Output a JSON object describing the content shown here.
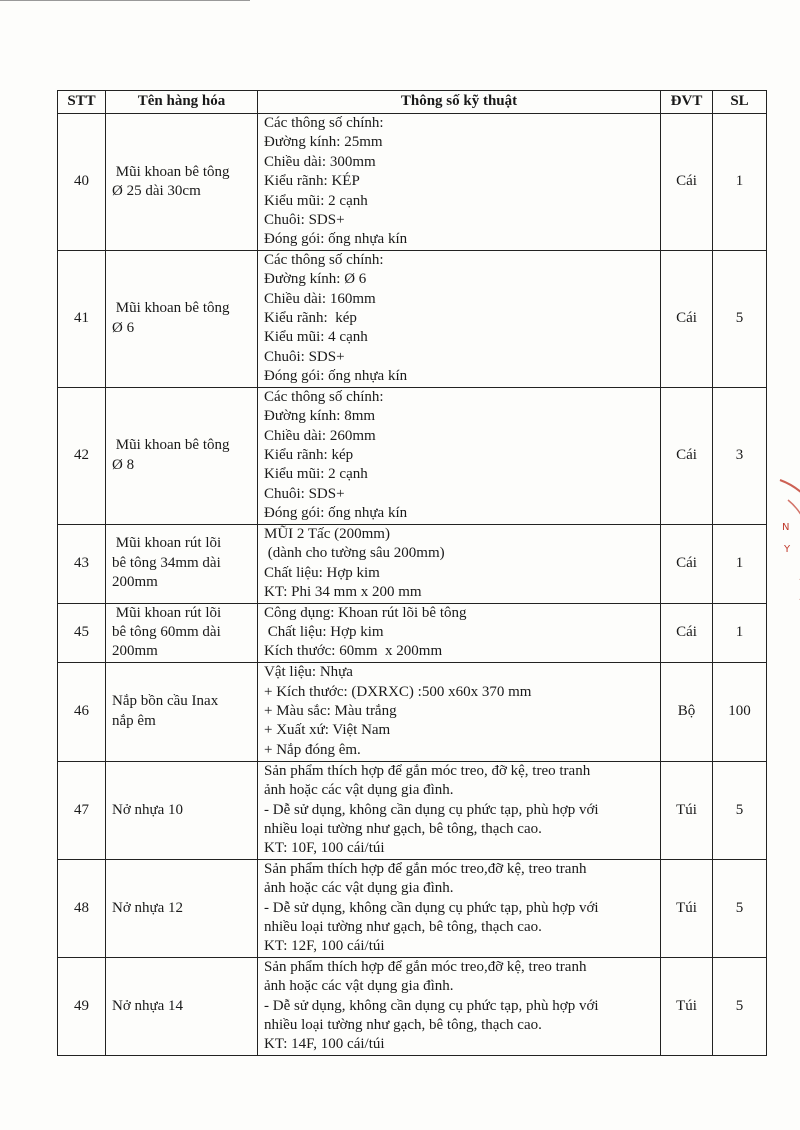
{
  "table": {
    "headers": [
      "STT",
      "Tên hàng hóa",
      "Thông số kỹ thuật",
      "ĐVT",
      "SL"
    ],
    "rows": [
      {
        "stt": "40",
        "name": " Mũi khoan bê tông\nØ 25 dài 30cm",
        "spec": [
          "Các thông số chính:",
          "Đường kính: 25mm",
          "Chiều dài: 300mm",
          "Kiểu rãnh: KÉP",
          "Kiểu mũi: 2 cạnh",
          "Chuôi: SDS+",
          "Đóng gói: ống nhựa kín"
        ],
        "unit": "Cái",
        "qty": "1"
      },
      {
        "stt": "41",
        "name": " Mũi khoan bê tông\nØ 6",
        "spec": [
          "Các thông số chính:",
          "Đường kính: Ø 6",
          "Chiều dài: 160mm",
          "Kiểu rãnh:  kép",
          "Kiểu mũi: 4 cạnh",
          "Chuôi: SDS+",
          "Đóng gói: ống nhựa kín"
        ],
        "unit": "Cái",
        "qty": "5"
      },
      {
        "stt": "42",
        "name": " Mũi khoan bê tông\nØ 8",
        "spec": [
          "Các thông số chính:",
          "Đường kính: 8mm",
          "Chiều dài: 260mm",
          "Kiểu rãnh: kép",
          "Kiểu mũi: 2 cạnh",
          "Chuôi: SDS+",
          "Đóng gói: ống nhựa kín"
        ],
        "unit": "Cái",
        "qty": "3"
      },
      {
        "stt": "43",
        "name": " Mũi khoan rút lõi\nbê tông 34mm dài\n200mm",
        "spec": [
          "MŨI 2 Tấc (200mm)",
          " (dành cho tường sâu 200mm)",
          "Chất liệu: Hợp kim",
          "KT: Phi 34 mm x 200 mm"
        ],
        "unit": "Cái",
        "qty": "1"
      },
      {
        "stt": "45",
        "name": " Mũi khoan rút lõi\nbê tông 60mm dài\n200mm",
        "spec": [
          "Công dụng: Khoan rút lõi bê tông",
          " Chất liệu: Hợp kim",
          "Kích thước: 60mm  x 200mm"
        ],
        "unit": "Cái",
        "qty": "1"
      },
      {
        "stt": "46",
        "name": "Nắp bồn cầu Inax\nnắp êm",
        "spec": [
          "Vật liệu: Nhựa",
          "+ Kích thước: (DXRXC) :500 x60x 370 mm",
          "+ Màu sắc: Màu trắng",
          "+ Xuất xứ: Việt Nam",
          "+ Nắp đóng êm."
        ],
        "unit": "Bộ",
        "qty": "100"
      },
      {
        "stt": "47",
        "name": "Nở nhựa 10",
        "spec": [
          "Sản phẩm thích hợp để gắn móc treo, đỡ kệ, treo tranh",
          "ảnh hoặc các vật dụng gia đình.",
          "- Dễ sử dụng, không cần dụng cụ phức tạp, phù hợp với",
          "nhiều loại tường như gạch, bê tông, thạch cao.",
          "KT: 10F, 100 cái/túi"
        ],
        "unit": "Túi",
        "qty": "5"
      },
      {
        "stt": "48",
        "name": "Nở nhựa 12",
        "spec": [
          "Sản phẩm thích hợp để gắn móc treo,đỡ kệ, treo tranh",
          "ảnh hoặc các vật dụng gia đình.",
          "- Dễ sử dụng, không cần dụng cụ phức tạp, phù hợp với",
          "nhiều loại tường như gạch, bê tông, thạch cao.",
          "KT: 12F, 100 cái/túi"
        ],
        "unit": "Túi",
        "qty": "5"
      },
      {
        "stt": "49",
        "name": "Nở nhựa 14",
        "spec": [
          "Sản phẩm thích hợp để gắn móc treo,đỡ kệ, treo tranh",
          "ảnh hoặc các vật dụng gia đình.",
          "- Dễ sử dụng, không cần dụng cụ phức tạp, phù hợp với",
          "nhiều loại tường như gạch, bê tông, thạch cao.",
          "KT: 14F, 100 cái/túi"
        ],
        "unit": "Túi",
        "qty": "5"
      }
    ]
  },
  "stamp_color": "#c0392b"
}
